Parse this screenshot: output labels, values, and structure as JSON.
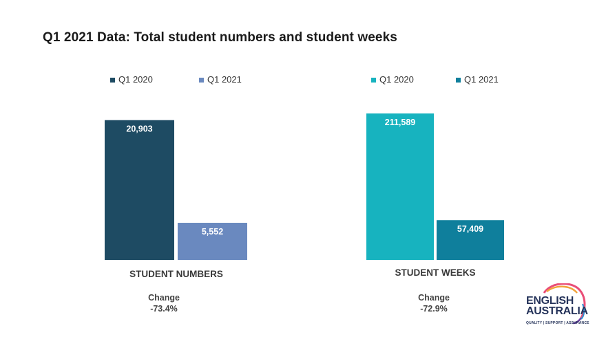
{
  "title": "Q1 2021 Data: Total student numbers and student weeks",
  "chart_data": [
    {
      "type": "bar",
      "categories": [
        "STUDENT NUMBERS"
      ],
      "series": [
        {
          "name": "Q1 2020",
          "values": [
            20903
          ],
          "color": "#1e4b63"
        },
        {
          "name": "Q1 2021",
          "values": [
            5552
          ],
          "color": "#6a89bf"
        }
      ],
      "data_labels": [
        "20,903",
        "5,552"
      ],
      "xlabel": "STUDENT NUMBERS",
      "change_label": "Change",
      "change_value": "-73.4%",
      "ylim": [
        0,
        21800
      ],
      "legend": "top"
    },
    {
      "type": "bar",
      "categories": [
        "STUDENT WEEKS"
      ],
      "series": [
        {
          "name": "Q1 2020",
          "values": [
            211589
          ],
          "color": "#17b3bf"
        },
        {
          "name": "Q1 2021",
          "values": [
            57409
          ],
          "color": "#0f7f9c"
        }
      ],
      "data_labels": [
        "211,589",
        "57,409"
      ],
      "xlabel": "STUDENT WEEKS",
      "change_label": "Change",
      "change_value": "-72.9%",
      "ylim": [
        0,
        211589
      ],
      "legend": "top"
    }
  ],
  "logo": {
    "line1": "ENGLISH",
    "line2": "AUSTRALIA",
    "tagline": "QUALITY | SUPPORT | ASSURANCE"
  }
}
